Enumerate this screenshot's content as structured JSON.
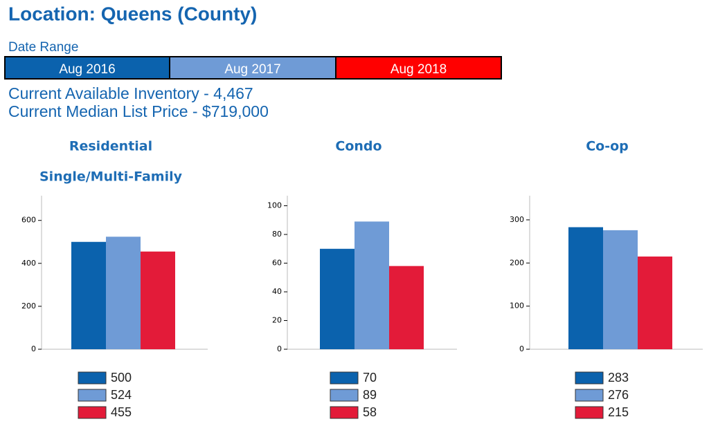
{
  "header": {
    "title": "Location: Queens (County)",
    "date_range_label": "Date Range",
    "date_ranges": [
      {
        "label": "Aug 2016",
        "color": "#0b62ad"
      },
      {
        "label": "Aug 2017",
        "color": "#6f9bd6"
      },
      {
        "label": "Aug 2018",
        "color": "#ff0000"
      }
    ],
    "inventory": "Current Available Inventory - 4,467",
    "median_price": "Current Median List Price - $719,000"
  },
  "chart_data": [
    {
      "type": "bar",
      "title": "Residential",
      "subtitle": "Single/Multi-Family",
      "values": [
        500,
        524,
        455
      ],
      "colors": [
        "#0b62ad",
        "#6f9bd6",
        "#e31b39"
      ],
      "ylim": [
        0,
        715
      ],
      "yticks": [
        0,
        200,
        400,
        600
      ]
    },
    {
      "type": "bar",
      "title": "Condo",
      "values": [
        70,
        89,
        58
      ],
      "colors": [
        "#0b62ad",
        "#6f9bd6",
        "#e31b39"
      ],
      "ylim": [
        0,
        107
      ],
      "yticks": [
        0,
        20,
        40,
        60,
        80,
        100
      ]
    },
    {
      "type": "bar",
      "title": "Co-op",
      "values": [
        283,
        276,
        215
      ],
      "colors": [
        "#0b62ad",
        "#6f9bd6",
        "#e31b39"
      ],
      "ylim": [
        0,
        356
      ],
      "yticks": [
        0,
        100,
        200,
        300
      ]
    }
  ]
}
